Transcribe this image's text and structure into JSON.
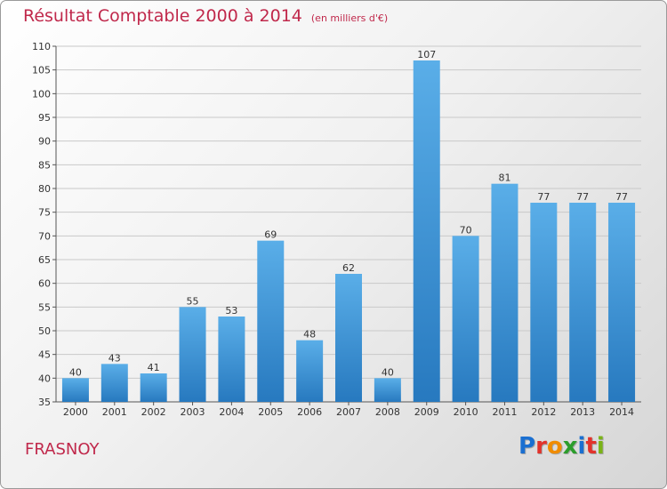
{
  "header": {
    "title": "Résultat Comptable 2000 à 2014",
    "subtitle": "(en milliers d'€)"
  },
  "footer": {
    "commune": "FRASNOY",
    "brand": "Proxiti"
  },
  "colors": {
    "accent": "#c0284b",
    "bar_light": "#5aaee8",
    "bar_dark": "#2779bf",
    "logo_letters": [
      "#1a6fd1",
      "#e2322b",
      "#f08c00",
      "#2c9d2c",
      "#1a6fd1",
      "#e2322b",
      "#7ab317"
    ]
  },
  "chart_data": {
    "type": "bar",
    "categories": [
      "2000",
      "2001",
      "2002",
      "2003",
      "2004",
      "2005",
      "2006",
      "2007",
      "2008",
      "2009",
      "2010",
      "2011",
      "2012",
      "2013",
      "2014"
    ],
    "values": [
      40,
      43,
      41,
      55,
      53,
      69,
      48,
      62,
      40,
      107,
      70,
      81,
      77,
      77,
      77
    ],
    "data_labels": [
      "40",
      "43",
      "41",
      "55",
      "53",
      "69",
      "48",
      "62",
      "40",
      "107",
      "70",
      "81",
      "77",
      "77",
      "77"
    ],
    "ylim": [
      35,
      110
    ],
    "yticks": [
      35,
      40,
      45,
      50,
      55,
      60,
      65,
      70,
      75,
      80,
      85,
      90,
      95,
      100,
      105,
      110
    ],
    "ytick_labels": [
      "35",
      "40",
      "45",
      "50",
      "55",
      "60",
      "65",
      "70",
      "75",
      "80",
      "85",
      "90",
      "95",
      "100",
      "105",
      "110"
    ],
    "grid": true,
    "legend": "none"
  }
}
